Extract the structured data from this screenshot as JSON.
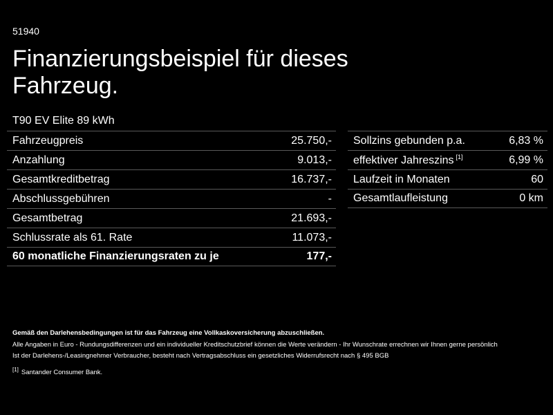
{
  "header": {
    "ref_id": "51940",
    "title": "Finanzierungsbeispiel für dieses Fahrzeug.",
    "model": "T90 EV Elite 89 kWh"
  },
  "left_table": {
    "rows": [
      {
        "label": "Fahrzeugpreis",
        "value": "25.750,-"
      },
      {
        "label": "Anzahlung",
        "value": "9.013,-"
      },
      {
        "label": "Gesamtkreditbetrag",
        "value": "16.737,-"
      },
      {
        "label": "Abschlussgebühren",
        "value": "-"
      },
      {
        "label": "Gesamtbetrag",
        "value": "21.693,-"
      },
      {
        "label": "Schlussrate als 61. Rate",
        "value": "11.073,-"
      },
      {
        "label": "60 monatliche Finanzierungsraten zu je",
        "value": "177,-"
      }
    ]
  },
  "right_table": {
    "rows": [
      {
        "label": "Sollzins gebunden p.a.",
        "value": "6,83 %"
      },
      {
        "label": "effektiver Jahreszins",
        "footnote_mark": "[1]",
        "value": "6,99 %"
      },
      {
        "label": "Laufzeit in Monaten",
        "value": "60"
      },
      {
        "label": "Gesamtlaufleistung",
        "value": "0 km"
      }
    ]
  },
  "footer": {
    "notice": "Gemäß den Darlehensbedingungen ist für das Fahrzeug eine Vollkaskoversicherung abzuschließen.",
    "line1": "Alle Angaben in Euro - Rundungsdifferenzen und ein individueller Kreditschutzbrief können die Werte verändern - Ihr Wunschrate errechnen wir Ihnen gerne persönlich",
    "line2": "Ist der Darlehens-/Leasingnehmer Verbraucher, besteht nach Vertragsabschluss ein gesetzliches Widerrufsrecht nach § 495 BGB",
    "footnote_mark": "[1]",
    "footnote_text": "Santander Consumer Bank."
  }
}
